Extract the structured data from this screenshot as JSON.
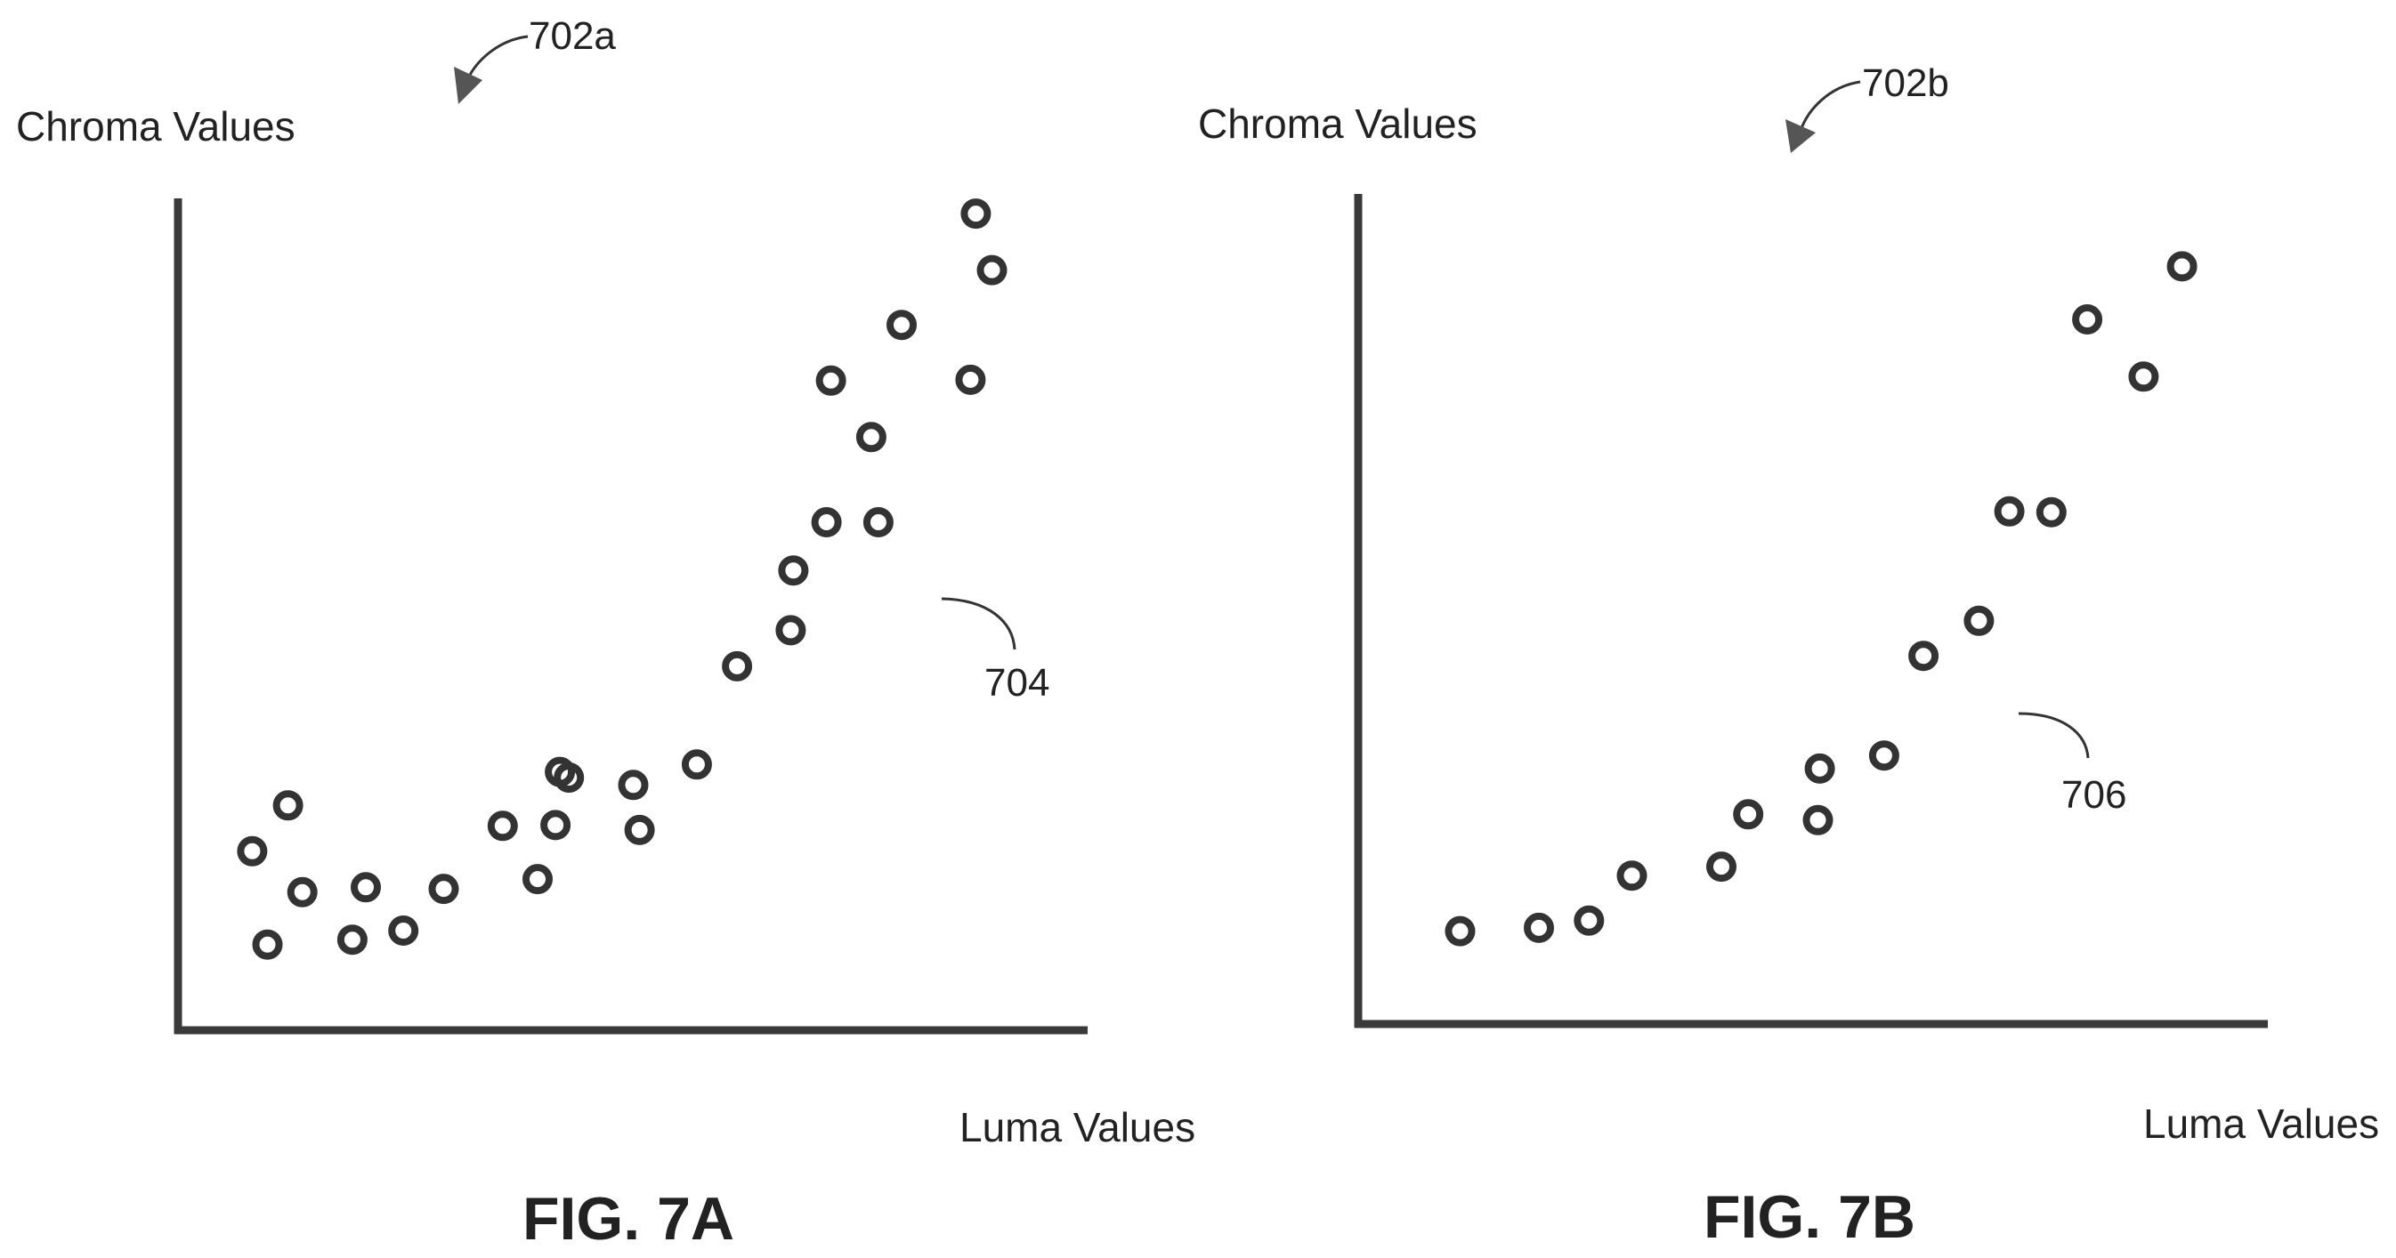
{
  "figures": [
    {
      "fig_label": "FIG. 7A",
      "ref_label": "702a",
      "cluster_label": "704"
    },
    {
      "fig_label": "FIG. 7B",
      "ref_label": "702b",
      "cluster_label": "706"
    }
  ],
  "chart_data": [
    {
      "type": "scatter",
      "title": "",
      "xlabel": "Luma Values",
      "ylabel": "Chroma Values",
      "xlim": [
        0,
        100
      ],
      "ylim": [
        0,
        100
      ],
      "grid": false,
      "legend": "none",
      "series": [
        {
          "x": [
            7.8,
            9.5,
            11.8,
            13.4,
            19.0,
            20.5,
            24.7,
            29.2,
            35.8,
            39.7,
            41.7,
            42.2,
            43.2,
            50.4,
            51.1,
            57.5,
            62.0,
            68.0,
            68.3,
            72.0,
            72.5,
            77.0,
            77.8,
            80.4,
            88.1,
            88.7,
            90.5
          ],
          "y": [
            21.0,
            9.6,
            26.6,
            16.0,
            10.2,
            16.6,
            11.3,
            16.4,
            24.1,
            17.6,
            24.2,
            30.7,
            30.0,
            29.1,
            23.6,
            31.6,
            43.6,
            48.0,
            55.3,
            61.2,
            78.5,
            71.6,
            61.2,
            85.3,
            78.6,
            98.9,
            92.0
          ]
        }
      ]
    },
    {
      "type": "scatter",
      "title": "",
      "xlabel": "Luma Values",
      "ylabel": "Chroma Values",
      "xlim": [
        0,
        100
      ],
      "ylim": [
        0,
        100
      ],
      "grid": false,
      "legend": "none",
      "series": [
        {
          "x": [
            10.9,
            19.7,
            25.3,
            30.1,
            40.1,
            43.1,
            50.9,
            51.1,
            58.3,
            62.7,
            68.9,
            72.3,
            77.0,
            81.0,
            87.3,
            91.6
          ],
          "y": [
            10.5,
            10.9,
            11.8,
            17.3,
            18.4,
            24.8,
            24.1,
            30.4,
            32.0,
            44.2,
            48.5,
            61.9,
            61.8,
            85.4,
            78.4,
            91.9
          ]
        }
      ]
    }
  ]
}
